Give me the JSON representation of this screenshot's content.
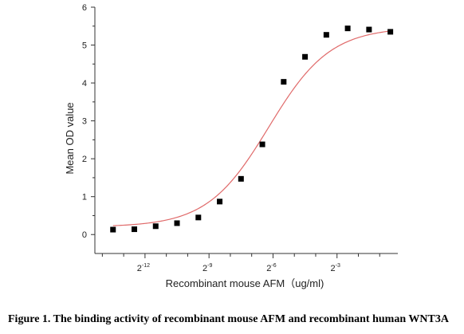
{
  "chart_data": {
    "type": "scatter",
    "title": "",
    "xlabel": "Recombinant mouse AFM（ug/ml)",
    "ylabel": "Mean OD value",
    "x_scale": "log2",
    "xlim_log2": [
      -14.35,
      -0.15
    ],
    "ylim": [
      -0.5,
      6
    ],
    "y_ticks": [
      0,
      1,
      2,
      3,
      4,
      5,
      6
    ],
    "y_tick_labels": [
      "0",
      "1",
      "2",
      "3",
      "4",
      "5",
      "6"
    ],
    "x_major_ticks_log2": [
      -12,
      -9,
      -6,
      -3
    ],
    "x_tick_labels": [
      {
        "base": "2",
        "exp": "-12"
      },
      {
        "base": "2",
        "exp": "-9"
      },
      {
        "base": "2",
        "exp": "-6"
      },
      {
        "base": "2",
        "exp": "-3"
      }
    ],
    "x_minor_ticks_log2": [
      -14,
      -13,
      -11,
      -10,
      -8,
      -7,
      -5,
      -4,
      -2,
      -1
    ],
    "grid": false,
    "legend": "none",
    "series": [
      {
        "x_log2": [
          -13.5,
          -12.5,
          -11.5,
          -10.5,
          -9.5,
          -8.5,
          -7.5,
          -6.5,
          -5.5,
          -4.5,
          -3.5,
          -2.5,
          -1.5,
          -0.5
        ],
        "values": [
          0.13,
          0.14,
          0.22,
          0.3,
          0.45,
          0.87,
          1.47,
          2.38,
          4.03,
          4.69,
          5.27,
          5.44,
          5.41,
          5.35
        ],
        "marker_color": "#000000"
      }
    ],
    "fit": {
      "model": "4PL",
      "bottom": 0.2,
      "top": 5.47,
      "ec50_log2": -6.2,
      "slope_log2": 1.0,
      "color": "#e06a6a"
    }
  },
  "caption": "Figure 1. The binding activity of recombinant mouse AFM and recombinant human WNT3A"
}
